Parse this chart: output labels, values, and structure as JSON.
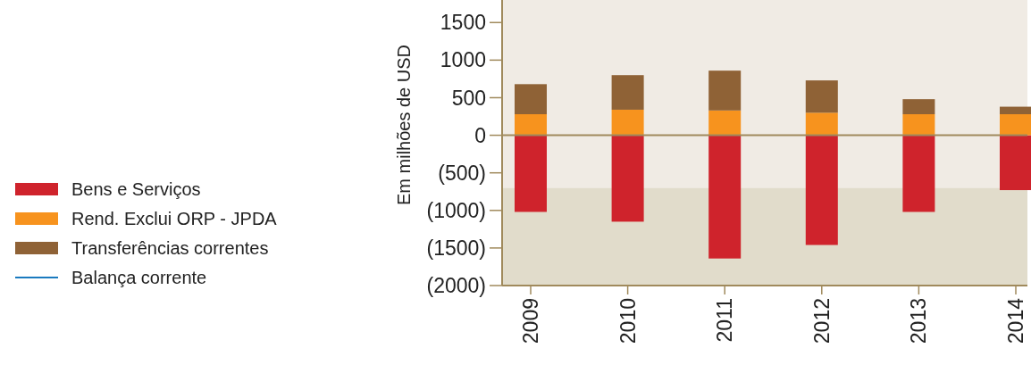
{
  "chart_data": {
    "type": "bar",
    "stacked": true,
    "ylabel": "Em milhões de USD",
    "categories": [
      "2009",
      "2010",
      "2011",
      "2012",
      "2013",
      "2014"
    ],
    "series": [
      {
        "name": "Bens e Serviços",
        "color": "#cf232c",
        "values": [
          -1020,
          -1150,
          -1640,
          -1460,
          -1020,
          -730
        ]
      },
      {
        "name": "Rend. Exclui ORP - JPDA",
        "color": "#f7931e",
        "values": [
          280,
          340,
          330,
          300,
          280,
          280
        ]
      },
      {
        "name": "Transferências correntes",
        "color": "#8f6236",
        "values": [
          400,
          460,
          530,
          430,
          200,
          100
        ]
      },
      {
        "name": "Balança corrente",
        "type": "line",
        "color": "#1a7abf",
        "values": [
          null,
          null,
          null,
          null,
          null,
          null
        ]
      }
    ],
    "ylim": [
      -2000,
      1800
    ],
    "yticks": [
      {
        "value": -2000,
        "label": "(2000)"
      },
      {
        "value": -1500,
        "label": "(1500)"
      },
      {
        "value": -1000,
        "label": "(1000)"
      },
      {
        "value": -500,
        "label": "(500)"
      },
      0,
      500,
      1000,
      1500
    ],
    "bands": [
      {
        "axis": "y",
        "from": -700,
        "to": 1800,
        "color": "#f0ebe4"
      },
      {
        "axis": "y",
        "from": -2000,
        "to": -700,
        "color": "#e1dccb"
      }
    ],
    "ref_lines": [
      {
        "axis": "y",
        "value": 0,
        "color": "#a08a5c"
      }
    ],
    "legend": "left",
    "grid": false
  }
}
